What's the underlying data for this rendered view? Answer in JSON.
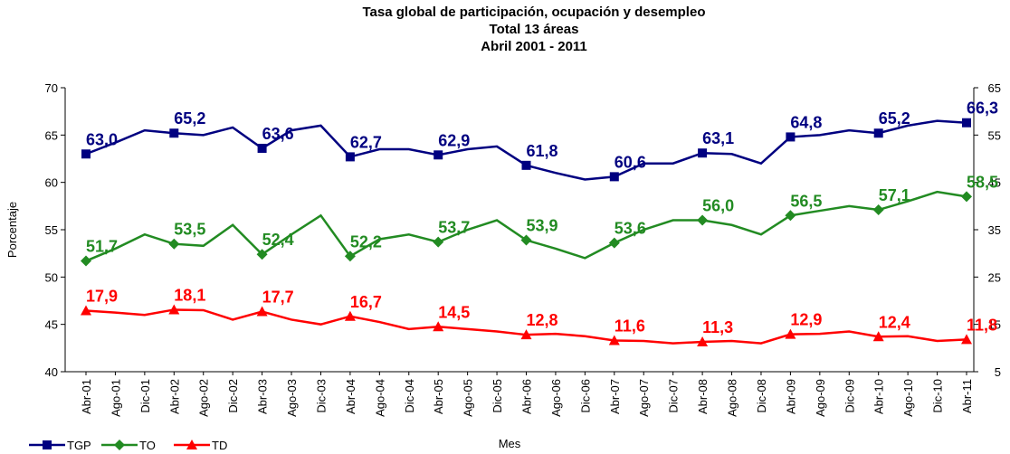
{
  "chart_data": {
    "type": "line",
    "title": "Tasa global de participación, ocupación y desempleo",
    "subtitle": [
      "Total 13 áreas",
      "Abril 2001 - 2011"
    ],
    "xlabel": "Mes",
    "ylabel": "Porcentaje",
    "categories": [
      "Abr-01",
      "Ago-01",
      "Dic-01",
      "Abr-02",
      "Ago-02",
      "Dic-02",
      "Abr-03",
      "Ago-03",
      "Dic-03",
      "Abr-04",
      "Ago-04",
      "Dic-04",
      "Abr-05",
      "Ago-05",
      "Dic-05",
      "Abr-06",
      "Ago-06",
      "Dic-06",
      "Abr-07",
      "Ago-07",
      "Dic-07",
      "Abr-08",
      "Ago-08",
      "Dic-08",
      "Abr-09",
      "Ago-09",
      "Dic-09",
      "Abr-10",
      "Ago-10",
      "Dic-10",
      "Abr-11"
    ],
    "ylim": [
      40,
      70
    ],
    "yticks": [
      40,
      45,
      50,
      55,
      60,
      65,
      70
    ],
    "y2lim": [
      5,
      65
    ],
    "y2ticks": [
      5,
      15,
      25,
      35,
      45,
      55,
      65
    ],
    "legend": "bottom-left",
    "series": [
      {
        "name": "TGP",
        "color": "#000080",
        "marker": "square",
        "values": [
          63.0,
          64.2,
          65.5,
          65.2,
          65.0,
          65.8,
          63.6,
          65.5,
          66.0,
          62.7,
          63.5,
          63.5,
          62.9,
          63.5,
          63.8,
          61.8,
          61.0,
          60.3,
          60.6,
          62.0,
          62.0,
          63.1,
          63.0,
          62.0,
          64.8,
          65.0,
          65.5,
          65.2,
          66.0,
          66.5,
          66.3
        ],
        "value_labels": [
          "63,0",
          null,
          null,
          "65,2",
          null,
          null,
          "63,6",
          null,
          null,
          "62,7",
          null,
          null,
          "62,9",
          null,
          null,
          "61,8",
          null,
          null,
          "60,6",
          null,
          null,
          "63,1",
          null,
          null,
          "64,8",
          null,
          null,
          "65,2",
          null,
          null,
          "66,3"
        ]
      },
      {
        "name": "TO",
        "color": "#228B22",
        "marker": "diamond",
        "values": [
          51.7,
          53.0,
          54.5,
          53.5,
          53.3,
          55.5,
          52.4,
          54.5,
          56.5,
          52.2,
          54.0,
          54.5,
          53.7,
          55.0,
          56.0,
          53.9,
          53.0,
          52.0,
          53.6,
          55.0,
          56.0,
          56.0,
          55.5,
          54.5,
          56.5,
          57.0,
          57.5,
          57.1,
          58.0,
          59.0,
          58.5
        ],
        "value_labels": [
          "51,7",
          null,
          null,
          "53,5",
          null,
          null,
          "52,4",
          null,
          null,
          "52,2",
          null,
          null,
          "53,7",
          null,
          null,
          "53,9",
          null,
          null,
          "53,6",
          null,
          null,
          "56,0",
          null,
          null,
          "56,5",
          null,
          null,
          "57,1",
          null,
          null,
          "58,5"
        ]
      },
      {
        "name": "TD",
        "color": "#FF0000",
        "marker": "triangle",
        "axis": "y2",
        "values": [
          17.9,
          17.5,
          17.0,
          18.1,
          18.0,
          16.0,
          17.7,
          16.0,
          15.0,
          16.7,
          15.5,
          14.0,
          14.5,
          14.0,
          13.5,
          12.8,
          13.0,
          12.5,
          11.6,
          11.5,
          11.0,
          11.3,
          11.5,
          11.0,
          12.9,
          13.0,
          13.5,
          12.4,
          12.5,
          11.5,
          11.8
        ],
        "value_labels": [
          "17,9",
          null,
          null,
          "18,1",
          null,
          null,
          "17,7",
          null,
          null,
          "16,7",
          null,
          null,
          "14,5",
          null,
          null,
          "12,8",
          null,
          null,
          "11,6",
          null,
          null,
          "11,3",
          null,
          null,
          "12,9",
          null,
          null,
          "12,4",
          null,
          null,
          "11,8"
        ]
      }
    ]
  }
}
